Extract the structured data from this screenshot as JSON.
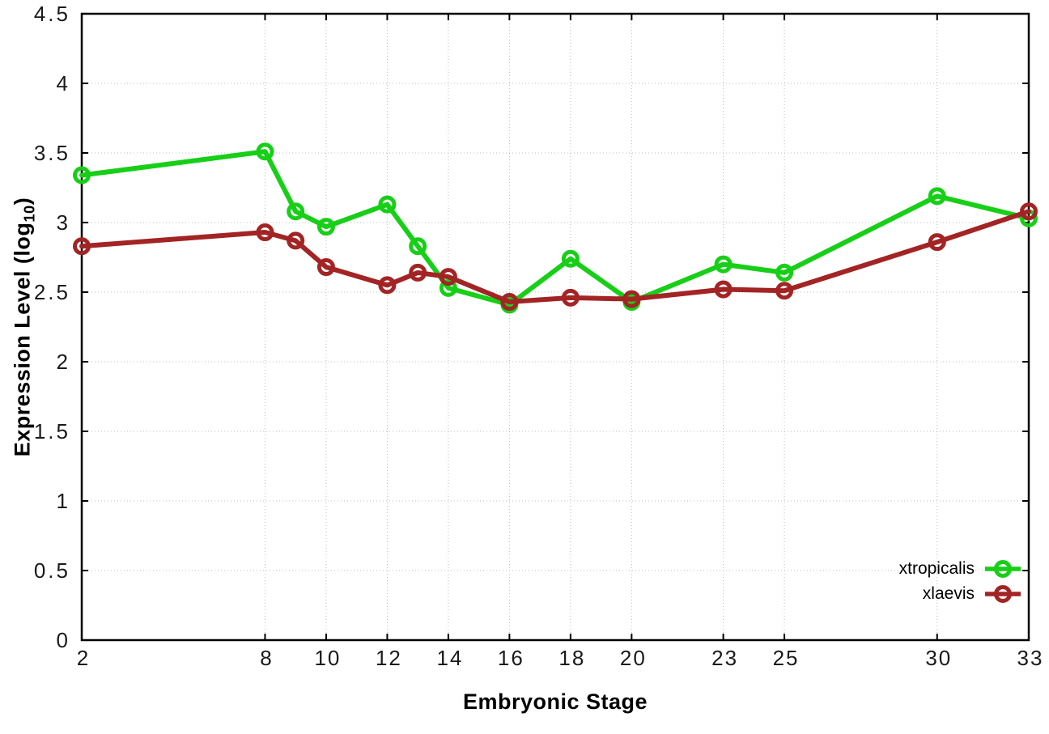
{
  "chart_data": {
    "type": "line",
    "x": [
      2,
      8,
      9,
      10,
      12,
      13,
      14,
      16,
      18,
      20,
      23,
      25,
      30,
      33
    ],
    "series": [
      {
        "name": "xtropicalis",
        "color": "#17cf17",
        "values": [
          3.34,
          3.51,
          3.08,
          2.97,
          3.13,
          2.83,
          2.53,
          2.41,
          2.74,
          2.43,
          2.7,
          2.64,
          3.19,
          3.03
        ]
      },
      {
        "name": "xlaevis",
        "color": "#a32424",
        "values": [
          2.83,
          2.93,
          2.87,
          2.68,
          2.55,
          2.64,
          2.61,
          2.43,
          2.46,
          2.45,
          2.52,
          2.51,
          2.86,
          3.08
        ]
      }
    ],
    "title": "",
    "xlabel": "Embryonic Stage",
    "ylabel_main": "Expression Level (log",
    "ylabel_sub": "10",
    "ylabel_close": ")",
    "xlim": [
      2,
      33
    ],
    "ylim": [
      0,
      4.5
    ],
    "xticks": [
      2,
      8,
      10,
      12,
      14,
      16,
      18,
      20,
      23,
      25,
      30,
      33
    ],
    "yticks": [
      0,
      0.5,
      1,
      1.5,
      2,
      2.5,
      3,
      3.5,
      4,
      4.5
    ],
    "grid": true,
    "grid_style": "dotted",
    "legend_position": "bottom-right",
    "marker": "open-circle",
    "frame_color": "#000000",
    "grid_color": "#bcbcbc",
    "tick_label_color": "#1a1a1a"
  }
}
